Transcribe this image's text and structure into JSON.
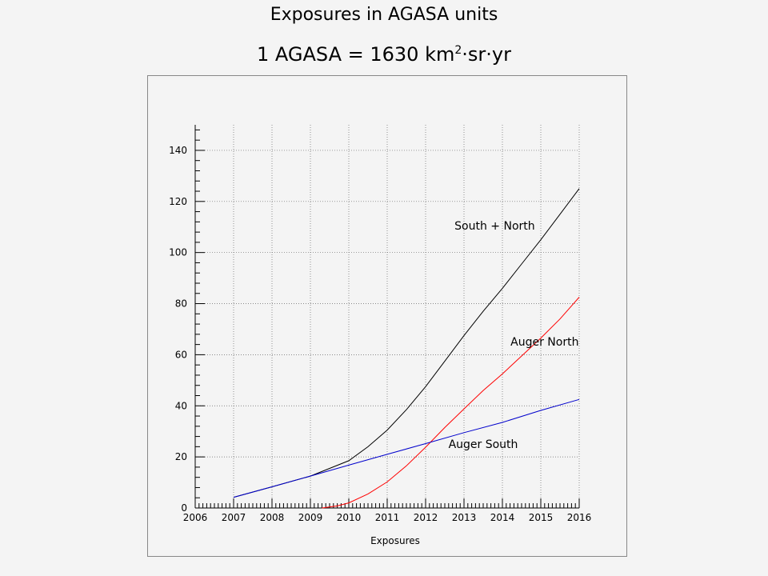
{
  "title": "Exposures in AGASA units",
  "subtitle_main": "1 AGASA = 1630 km",
  "subtitle_sup": "2",
  "subtitle_tail": "·sr·yr",
  "chart_data": {
    "type": "line",
    "title": "Exposures in AGASA units",
    "subtitle": "1 AGASA = 1630 km²·sr·yr",
    "xlabel": "Exposures",
    "ylabel": "",
    "xlim": [
      2006,
      2016
    ],
    "ylim": [
      0,
      150
    ],
    "x_ticks": [
      "2006",
      "2007",
      "2008",
      "2009",
      "2010",
      "2011",
      "2012",
      "2013",
      "2014",
      "2015",
      "2016"
    ],
    "y_ticks": [
      "0",
      "20",
      "40",
      "60",
      "80",
      "100",
      "120",
      "140"
    ],
    "grid": true,
    "series": [
      {
        "name": "South + North",
        "color": "#000000",
        "x": [
          2007,
          2008,
          2009,
          2010,
          2010.5,
          2011,
          2011.5,
          2012,
          2012.5,
          2013,
          2013.5,
          2014,
          2014.5,
          2015,
          2015.5,
          2016
        ],
        "y": [
          4.2,
          8.3,
          12.5,
          18.5,
          24,
          30.5,
          38.5,
          47.5,
          57.5,
          67.5,
          77,
          86,
          95.5,
          105,
          115,
          125
        ]
      },
      {
        "name": "Auger North",
        "color": "#ff0000",
        "x": [
          2009.3,
          2009.7,
          2010,
          2010.5,
          2011,
          2011.5,
          2012,
          2012.5,
          2013,
          2013.5,
          2014,
          2014.5,
          2015,
          2015.5,
          2016
        ],
        "y": [
          0,
          0.8,
          2,
          5.5,
          10.2,
          16.5,
          23.8,
          31.5,
          38.8,
          46,
          52.5,
          59.5,
          66.5,
          74,
          82.5
        ]
      },
      {
        "name": "Auger South",
        "color": "#0000cc",
        "x": [
          2007,
          2008,
          2009,
          2010,
          2011,
          2012,
          2013,
          2014,
          2015,
          2016
        ],
        "y": [
          4.2,
          8.3,
          12.5,
          16.8,
          21,
          25.2,
          29.5,
          33.5,
          38.2,
          42.5
        ]
      }
    ],
    "annotations": [
      {
        "text": "South + North",
        "x": 2013.8,
        "y": 109
      },
      {
        "text": "Auger North",
        "x": 2015.1,
        "y": 63.5
      },
      {
        "text": "Auger South",
        "x": 2013.5,
        "y": 23.5
      }
    ]
  }
}
